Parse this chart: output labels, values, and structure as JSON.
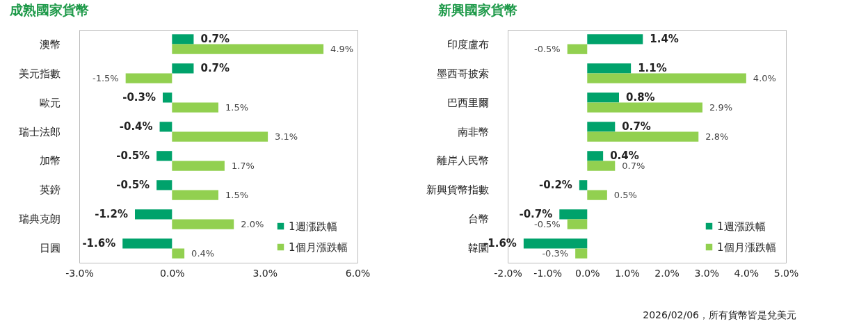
{
  "chart_data": [
    {
      "type": "bar",
      "orientation": "horizontal",
      "title": "成熟國家貨幣",
      "categories": [
        "澳幣",
        "美元指數",
        "歐元",
        "瑞士法郎",
        "加幣",
        "英鎊",
        "瑞典克朗",
        "日圓"
      ],
      "series": [
        {
          "name": "1週漲跌幅",
          "color": "#00a26b",
          "values": [
            0.7,
            0.7,
            -0.3,
            -0.4,
            -0.5,
            -0.5,
            -1.2,
            -1.6
          ],
          "value_labels": [
            "0.7%",
            "0.7%",
            "-0.3%",
            "-0.4%",
            "-0.5%",
            "-0.5%",
            "-1.2%",
            "-1.6%"
          ]
        },
        {
          "name": "1個月漲跌幅",
          "color": "#92d050",
          "values": [
            4.9,
            -1.5,
            1.5,
            3.1,
            1.7,
            1.5,
            2.0,
            0.4
          ],
          "value_labels": [
            "4.9%",
            "-1.5%",
            "1.5%",
            "3.1%",
            "1.7%",
            "1.5%",
            "2.0%",
            "0.4%"
          ]
        }
      ],
      "xlim": [
        -3,
        6
      ],
      "xticks": [
        {
          "value": -3,
          "label": "-3.0%"
        },
        {
          "value": 0,
          "label": "0.0%"
        },
        {
          "value": 3,
          "label": "3.0%"
        },
        {
          "value": 6,
          "label": "6.0%"
        }
      ],
      "legend": "bottom right",
      "grid": false
    },
    {
      "type": "bar",
      "orientation": "horizontal",
      "title": "新興國家貨幣",
      "categories": [
        "印度盧布",
        "墨西哥披索",
        "巴西里爾",
        "南非幣",
        "離岸人民幣",
        "新興貨幣指數",
        "台幣",
        "韓圜"
      ],
      "series": [
        {
          "name": "1週漲跌幅",
          "color": "#00a26b",
          "values": [
            1.4,
            1.1,
            0.8,
            0.7,
            0.4,
            -0.2,
            -0.7,
            -1.6
          ],
          "value_labels": [
            "1.4%",
            "1.1%",
            "0.8%",
            "0.7%",
            "0.4%",
            "-0.2%",
            "-0.7%",
            "-1.6%"
          ]
        },
        {
          "name": "1個月漲跌幅",
          "color": "#92d050",
          "values": [
            -0.5,
            4.0,
            2.9,
            2.8,
            0.7,
            0.5,
            -0.5,
            -0.3
          ],
          "value_labels": [
            "-0.5%",
            "4.0%",
            "2.9%",
            "2.8%",
            "0.7%",
            "0.5%",
            "-0.5%",
            "-0.3%"
          ]
        }
      ],
      "xlim": [
        -2,
        5
      ],
      "xticks": [
        {
          "value": -2,
          "label": "-2.0%"
        },
        {
          "value": -1,
          "label": "-1.0%"
        },
        {
          "value": 0,
          "label": "0.0%"
        },
        {
          "value": 1,
          "label": "1.0%"
        },
        {
          "value": 2,
          "label": "2.0%"
        },
        {
          "value": 3,
          "label": "3.0%"
        },
        {
          "value": 4,
          "label": "4.0%"
        },
        {
          "value": 5,
          "label": "5.0%"
        }
      ],
      "legend": "bottom right",
      "grid": false,
      "annotations": [
        "2026/02/06，所有貨幣皆是兌美元"
      ]
    }
  ]
}
